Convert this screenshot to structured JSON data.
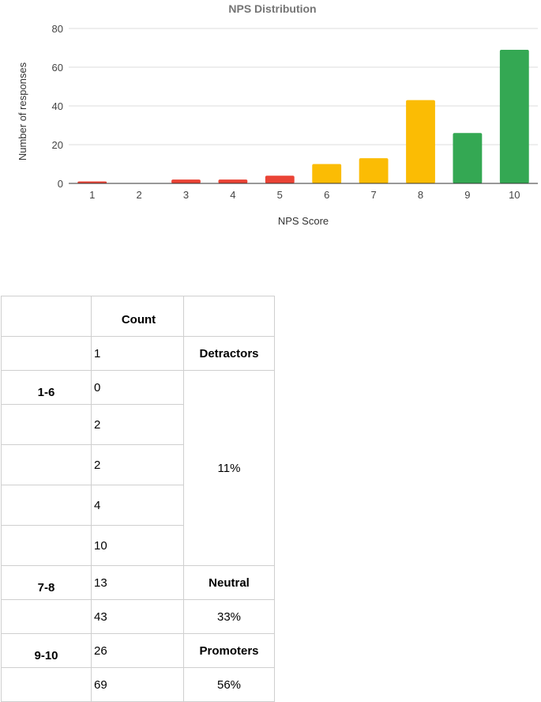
{
  "chart_data": {
    "type": "bar",
    "title": "NPS Distribution",
    "xlabel": "NPS Score",
    "ylabel": "Number of responses",
    "categories": [
      "1",
      "2",
      "3",
      "4",
      "5",
      "6",
      "7",
      "8",
      "9",
      "10"
    ],
    "values": [
      1,
      0,
      2,
      2,
      4,
      10,
      13,
      43,
      26,
      69
    ],
    "ylim": [
      0,
      80
    ],
    "yticks": [
      0,
      20,
      40,
      60,
      80
    ],
    "grid": true,
    "legend": "none",
    "colors": [
      "#ea4335",
      "#ea4335",
      "#ea4335",
      "#ea4335",
      "#ea4335",
      "#fbbc04",
      "#fbbc04",
      "#fbbc04",
      "#34a853",
      "#34a853"
    ]
  },
  "table": {
    "header": "Count",
    "counts": [
      "1",
      "0",
      "2",
      "2",
      "4",
      "10",
      "13",
      "43",
      "26",
      "69"
    ],
    "groups": {
      "detractors": {
        "range": "1-6",
        "label": "Detractors",
        "percent": "11%"
      },
      "neutral": {
        "range": "7-8",
        "label": "Neutral",
        "percent": "33%"
      },
      "promoters": {
        "range": "9-10",
        "label": "Promoters",
        "percent": "56%"
      }
    }
  }
}
